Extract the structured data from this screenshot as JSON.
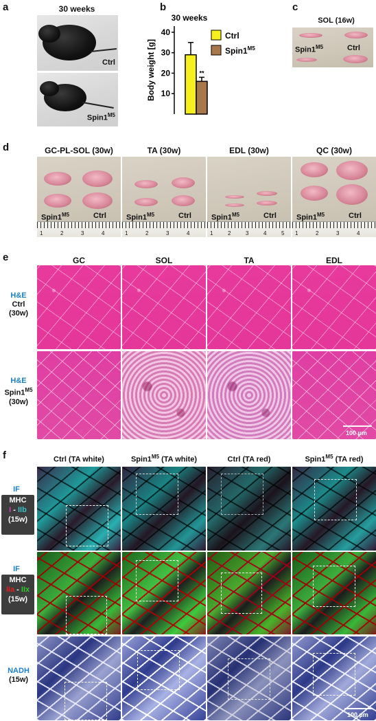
{
  "panels": {
    "a": {
      "letter": "a",
      "title": "30 weeks",
      "top_label": "Ctrl",
      "bottom_label": "Spin1",
      "bottom_label_sup": "M5"
    },
    "b": {
      "letter": "b",
      "title": "30 weeks",
      "significance": "**"
    },
    "c": {
      "letter": "c",
      "title": "SOL (16w)",
      "left_label": "Spin1",
      "left_label_sup": "M5",
      "right_label": "Ctrl"
    },
    "d": {
      "letter": "d",
      "photos": [
        {
          "title": "GC-PL-SOL (30w)",
          "ruler": [
            "1",
            "2",
            "3",
            "4"
          ]
        },
        {
          "title": "TA (30w)",
          "ruler": [
            "1",
            "2",
            "3",
            "4"
          ]
        },
        {
          "title": "EDL (30w)",
          "ruler": [
            "1",
            "2",
            "3",
            "4",
            "5"
          ]
        },
        {
          "title": "QC (30w)",
          "ruler": [
            "1",
            "2",
            "3",
            "4"
          ]
        }
      ],
      "left_label": "Spin1",
      "left_label_sup": "M5",
      "right_label": "Ctrl"
    },
    "e": {
      "letter": "e",
      "columns": [
        "GC",
        "SOL",
        "TA",
        "EDL"
      ],
      "rows": [
        {
          "stain": "H&E",
          "group": "Ctrl",
          "group_sup": "",
          "age": "(30w)"
        },
        {
          "stain": "H&E",
          "group": "Spin1",
          "group_sup": "M5",
          "age": "(30w)"
        }
      ],
      "scale": "100 µm"
    },
    "f": {
      "letter": "f",
      "columns": [
        {
          "pre": "Ctrl (TA white)",
          "sup": "",
          "post": ""
        },
        {
          "pre": "Spin1",
          "sup": "M5",
          "post": " (TA white)"
        },
        {
          "pre": "Ctrl (TA red)",
          "sup": "",
          "post": ""
        },
        {
          "pre": "Spin1",
          "sup": "M5",
          "post": " (TA red)"
        }
      ],
      "rows": [
        {
          "method": "IF",
          "tag_line1": "MHC",
          "tag_a": "I",
          "tag_dash": " - ",
          "tag_b": "IIb",
          "age": "(15w)",
          "color_a": "#d23cb4",
          "color_b": "#38c0c8"
        },
        {
          "method": "IF",
          "tag_line1": "MHC",
          "tag_a": "IIa",
          "tag_dash": " - ",
          "tag_b": "IIx",
          "age": "(15w)",
          "color_a": "#e02020",
          "color_b": "#2ec82e"
        },
        {
          "method": "NADH",
          "age": "(15w)"
        }
      ],
      "scale": "100 µm"
    }
  },
  "chart_data": {
    "type": "bar",
    "title": "30 weeks",
    "categories": [
      "Ctrl",
      "Spin1M5"
    ],
    "values": [
      29,
      16
    ],
    "errors": [
      6,
      2
    ],
    "colors": [
      "#f5f01e",
      "#a8784a"
    ],
    "ylabel": "Body weight [g]",
    "yticks": [
      "10",
      "20",
      "30",
      "40"
    ],
    "ylim": [
      0,
      43
    ],
    "legend": [
      {
        "label": "Ctrl",
        "sup": ""
      },
      {
        "label": "Spin1",
        "sup": "M5"
      }
    ],
    "legend_position": "top-right",
    "significance": "**"
  }
}
